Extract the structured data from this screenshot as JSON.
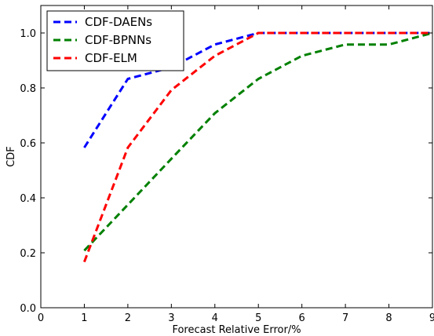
{
  "chart_data": {
    "type": "line",
    "title": "",
    "xlabel": "Forecast Relative Error/%",
    "ylabel": "CDF",
    "xlim": [
      0,
      9
    ],
    "ylim": [
      0,
      1.1
    ],
    "x_ticks": [
      "0",
      "1",
      "2",
      "3",
      "4",
      "5",
      "6",
      "7",
      "8",
      "9"
    ],
    "y_ticks": [
      "0.0",
      "0.2",
      "0.4",
      "0.6",
      "0.8",
      "1.0"
    ],
    "grid": false,
    "legend": "top-left",
    "series": [
      {
        "name": "CDF-DAENs",
        "color": "#0000ff",
        "x": [
          1,
          2,
          3,
          4,
          5,
          6,
          7,
          8,
          9
        ],
        "y": [
          0.583,
          0.833,
          0.875,
          0.958,
          1.0,
          1.0,
          1.0,
          1.0,
          1.0
        ]
      },
      {
        "name": "CDF-BPNNs",
        "color": "#008000",
        "x": [
          1,
          2,
          3,
          4,
          5,
          6,
          7,
          8,
          9
        ],
        "y": [
          0.208,
          0.375,
          0.542,
          0.708,
          0.833,
          0.917,
          0.958,
          0.958,
          1.0
        ]
      },
      {
        "name": "CDF-ELM",
        "color": "#ff0000",
        "x": [
          1,
          2,
          3,
          4,
          5,
          6,
          7,
          8,
          9
        ],
        "y": [
          0.167,
          0.583,
          0.792,
          0.917,
          1.0,
          1.0,
          1.0,
          1.0,
          1.0
        ]
      }
    ]
  }
}
